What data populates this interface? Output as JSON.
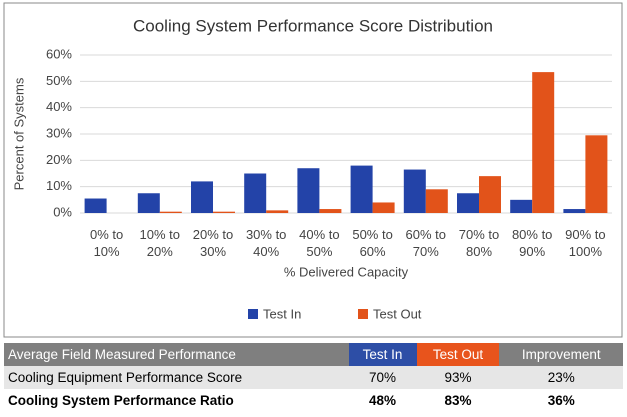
{
  "chart_data": {
    "type": "bar",
    "title": "Cooling System Performance Score Distribution",
    "x_label": "% Delivered Capacity",
    "y_label": "Percent of Systems",
    "categories": [
      "0% to 10%",
      "10% to 20%",
      "20% to 30%",
      "30% to 40%",
      "40% to 50%",
      "50% to 60%",
      "60% to 70%",
      "70% to 80%",
      "80% to 90%",
      "90% to 100%"
    ],
    "series": [
      {
        "name": "Test In",
        "color": "#2343a8",
        "values": [
          5.5,
          7.5,
          12,
          15,
          17,
          18,
          16.5,
          7.5,
          5,
          1.5
        ]
      },
      {
        "name": "Test Out",
        "color": "#e2531a",
        "values": [
          0,
          0.5,
          0.5,
          1,
          1.5,
          4,
          9,
          14,
          53.5,
          29.5
        ]
      }
    ],
    "ylim": [
      0,
      60
    ],
    "yticks": [
      {
        "value": 0,
        "label": "0%"
      },
      {
        "value": 10,
        "label": "10%"
      },
      {
        "value": 20,
        "label": "20%"
      },
      {
        "value": 30,
        "label": "30%"
      },
      {
        "value": 40,
        "label": "40%"
      },
      {
        "value": 50,
        "label": "50%"
      },
      {
        "value": 60,
        "label": "60%"
      }
    ],
    "grid": true,
    "legend": "bottom"
  },
  "table": {
    "header": [
      "Average Field Measured Performance",
      "Test In",
      "Test Out",
      "Improvement"
    ],
    "rows": [
      [
        "Cooling Equipment Performance Score",
        "70%",
        "93%",
        "23%"
      ],
      [
        "Cooling System Performance Ratio",
        "48%",
        "83%",
        "36%"
      ]
    ]
  }
}
